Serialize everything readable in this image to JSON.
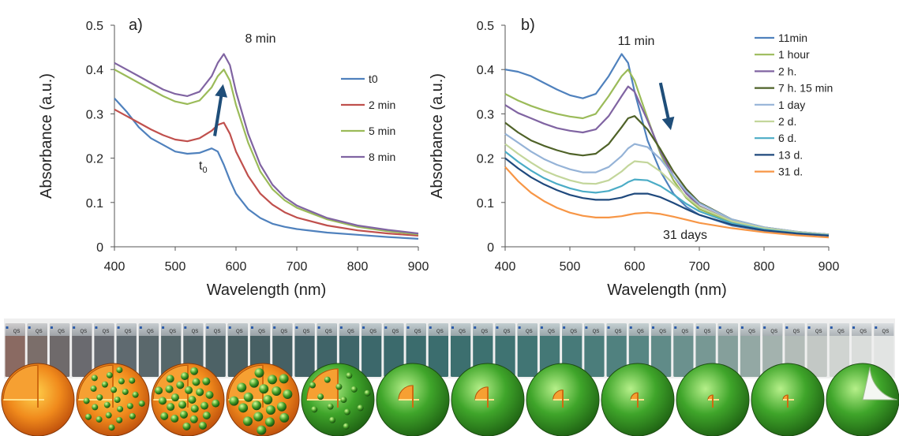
{
  "chart_data": [
    {
      "type": "line",
      "panel_label": "a)",
      "xlabel": "Wavelength (nm)",
      "ylabel": "Absorbance (a.u.)",
      "xlim": [
        400,
        900
      ],
      "ylim": [
        0,
        0.5
      ],
      "xticks": [
        "400",
        "500",
        "600",
        "700",
        "800",
        "900"
      ],
      "yticks": [
        "0",
        "0.1",
        "0.2",
        "0.3",
        "0.4",
        "0.5"
      ],
      "grid": false,
      "legend_position": "right",
      "annotations": {
        "top": "8 min",
        "bottom": "t",
        "bottom_sub": "0"
      },
      "arrow": {
        "direction": "up",
        "from": [
          565,
          0.25
        ],
        "to": [
          578,
          0.36
        ],
        "color": "#1f4e79"
      },
      "x": [
        400,
        420,
        440,
        460,
        480,
        500,
        520,
        540,
        560,
        570,
        580,
        590,
        600,
        620,
        640,
        660,
        680,
        700,
        750,
        800,
        850,
        900
      ],
      "series": [
        {
          "name": "t0",
          "color": "#4f81bd",
          "values": [
            0.335,
            0.305,
            0.27,
            0.245,
            0.23,
            0.215,
            0.21,
            0.212,
            0.222,
            0.215,
            0.185,
            0.15,
            0.12,
            0.085,
            0.065,
            0.052,
            0.045,
            0.04,
            0.032,
            0.027,
            0.022,
            0.018
          ]
        },
        {
          "name": "2 min",
          "color": "#c0504d",
          "values": [
            0.31,
            0.295,
            0.28,
            0.265,
            0.252,
            0.242,
            0.238,
            0.245,
            0.262,
            0.275,
            0.28,
            0.255,
            0.215,
            0.16,
            0.12,
            0.095,
            0.078,
            0.066,
            0.048,
            0.037,
            0.03,
            0.025
          ]
        },
        {
          "name": "5 min",
          "color": "#9bbb59",
          "values": [
            0.4,
            0.385,
            0.37,
            0.355,
            0.34,
            0.328,
            0.322,
            0.33,
            0.36,
            0.385,
            0.4,
            0.375,
            0.32,
            0.235,
            0.17,
            0.13,
            0.105,
            0.088,
            0.062,
            0.045,
            0.035,
            0.028
          ]
        },
        {
          "name": "8 min",
          "color": "#8064a2",
          "values": [
            0.415,
            0.4,
            0.385,
            0.37,
            0.355,
            0.345,
            0.34,
            0.35,
            0.385,
            0.415,
            0.435,
            0.41,
            0.35,
            0.255,
            0.185,
            0.14,
            0.112,
            0.093,
            0.065,
            0.048,
            0.038,
            0.03
          ]
        }
      ]
    },
    {
      "type": "line",
      "panel_label": "b)",
      "xlabel": "Wavelength (nm)",
      "ylabel": "Absorbance (a.u.)",
      "xlim": [
        400,
        900
      ],
      "ylim": [
        0,
        0.5
      ],
      "xticks": [
        "400",
        "500",
        "600",
        "700",
        "800",
        "900"
      ],
      "yticks": [
        "0",
        "0.1",
        "0.2",
        "0.3",
        "0.4",
        "0.5"
      ],
      "grid": false,
      "legend_position": "right",
      "annotations": {
        "top": "11 min",
        "bottom": "31 days"
      },
      "arrow": {
        "direction": "down",
        "from": [
          640,
          0.37
        ],
        "to": [
          655,
          0.27
        ],
        "color": "#1f4e79"
      },
      "x": [
        400,
        420,
        440,
        460,
        480,
        500,
        520,
        540,
        560,
        580,
        590,
        600,
        620,
        640,
        660,
        680,
        700,
        750,
        800,
        850,
        900
      ],
      "series": [
        {
          "name": "11min",
          "color": "#4f81bd",
          "values": [
            0.4,
            0.395,
            0.385,
            0.37,
            0.355,
            0.342,
            0.335,
            0.345,
            0.385,
            0.435,
            0.415,
            0.35,
            0.24,
            0.17,
            0.12,
            0.09,
            0.072,
            0.048,
            0.036,
            0.029,
            0.025
          ]
        },
        {
          "name": "1 hour",
          "color": "#9bbb59",
          "values": [
            0.345,
            0.33,
            0.318,
            0.308,
            0.3,
            0.294,
            0.29,
            0.3,
            0.34,
            0.385,
            0.4,
            0.375,
            0.29,
            0.21,
            0.15,
            0.11,
            0.085,
            0.055,
            0.04,
            0.032,
            0.027
          ]
        },
        {
          "name": "2 h.",
          "color": "#8064a2",
          "values": [
            0.32,
            0.302,
            0.29,
            0.278,
            0.268,
            0.262,
            0.258,
            0.265,
            0.295,
            0.34,
            0.362,
            0.35,
            0.285,
            0.215,
            0.16,
            0.12,
            0.092,
            0.058,
            0.042,
            0.033,
            0.028
          ]
        },
        {
          "name": "7 h. 15 min",
          "color": "#4f6228",
          "values": [
            0.28,
            0.258,
            0.24,
            0.228,
            0.218,
            0.21,
            0.206,
            0.21,
            0.232,
            0.27,
            0.29,
            0.295,
            0.265,
            0.22,
            0.17,
            0.13,
            0.1,
            0.062,
            0.044,
            0.034,
            0.028
          ]
        },
        {
          "name": "1 day",
          "color": "#95b3d7",
          "values": [
            0.255,
            0.235,
            0.215,
            0.198,
            0.185,
            0.175,
            0.168,
            0.168,
            0.18,
            0.205,
            0.222,
            0.232,
            0.225,
            0.198,
            0.16,
            0.125,
            0.098,
            0.062,
            0.044,
            0.034,
            0.028
          ]
        },
        {
          "name": "2 d.",
          "color": "#c3d69b",
          "values": [
            0.232,
            0.21,
            0.19,
            0.172,
            0.16,
            0.15,
            0.143,
            0.142,
            0.15,
            0.17,
            0.183,
            0.193,
            0.19,
            0.17,
            0.142,
            0.113,
            0.09,
            0.058,
            0.042,
            0.033,
            0.027
          ]
        },
        {
          "name": "6 d.",
          "color": "#4bacc6",
          "values": [
            0.215,
            0.192,
            0.172,
            0.155,
            0.142,
            0.132,
            0.125,
            0.122,
            0.126,
            0.137,
            0.146,
            0.152,
            0.15,
            0.137,
            0.118,
            0.097,
            0.08,
            0.053,
            0.039,
            0.031,
            0.026
          ]
        },
        {
          "name": "13 d.",
          "color": "#1f497d",
          "values": [
            0.2,
            0.177,
            0.157,
            0.141,
            0.128,
            0.117,
            0.11,
            0.106,
            0.106,
            0.111,
            0.116,
            0.12,
            0.12,
            0.112,
            0.099,
            0.085,
            0.072,
            0.05,
            0.037,
            0.03,
            0.025
          ]
        },
        {
          "name": "31 d.",
          "color": "#f79646",
          "values": [
            0.18,
            0.148,
            0.122,
            0.103,
            0.088,
            0.077,
            0.07,
            0.066,
            0.066,
            0.069,
            0.072,
            0.075,
            0.077,
            0.074,
            0.068,
            0.061,
            0.054,
            0.042,
            0.033,
            0.026,
            0.021
          ]
        }
      ]
    }
  ],
  "vial_strip": {
    "cap_label": "QS",
    "colors": [
      "#8a6a62",
      "#7b6e6a",
      "#6f6a6b",
      "#6a6a6f",
      "#666a70",
      "#5f6a70",
      "#5a686c",
      "#55676a",
      "#516468",
      "#4d6266",
      "#4a6164",
      "#476064",
      "#456064",
      "#436167",
      "#406468",
      "#3e6669",
      "#3c686b",
      "#3b6a6c",
      "#3b6c6d",
      "#3b6d6e",
      "#3c6f6f",
      "#3d7170",
      "#3f7372",
      "#417574",
      "#447876",
      "#477a79",
      "#4b7d7b",
      "#50817f",
      "#578683",
      "#608b88",
      "#6b918e",
      "#779894",
      "#859f9b",
      "#93a8a4",
      "#a3b2ae",
      "#b3bcb8",
      "#c3c8c5",
      "#d0d4d1",
      "#dadddb",
      "#e2e4e3"
    ]
  },
  "sphere_strip": {
    "stages": [
      {
        "shell": 0.0,
        "core": 1.0,
        "dots": 0
      },
      {
        "shell": 0.0,
        "core": 1.0,
        "dots": 24
      },
      {
        "shell": 0.0,
        "core": 1.0,
        "dots": 26
      },
      {
        "shell": 0.0,
        "core": 1.0,
        "dots": 20
      },
      {
        "shell": 0.15,
        "core": 1.0,
        "dots": 14
      },
      {
        "shell": 0.75,
        "core": 0.55,
        "dots": 0
      },
      {
        "shell": 0.8,
        "core": 0.5,
        "dots": 0
      },
      {
        "shell": 0.85,
        "core": 0.4,
        "dots": 0
      },
      {
        "shell": 0.9,
        "core": 0.3,
        "dots": 0
      },
      {
        "shell": 0.95,
        "core": 0.18,
        "dots": 0
      },
      {
        "shell": 1.0,
        "core": 0.05,
        "dots": 0
      },
      {
        "shell": 1.0,
        "core": 0.0,
        "dots": 0
      }
    ]
  }
}
